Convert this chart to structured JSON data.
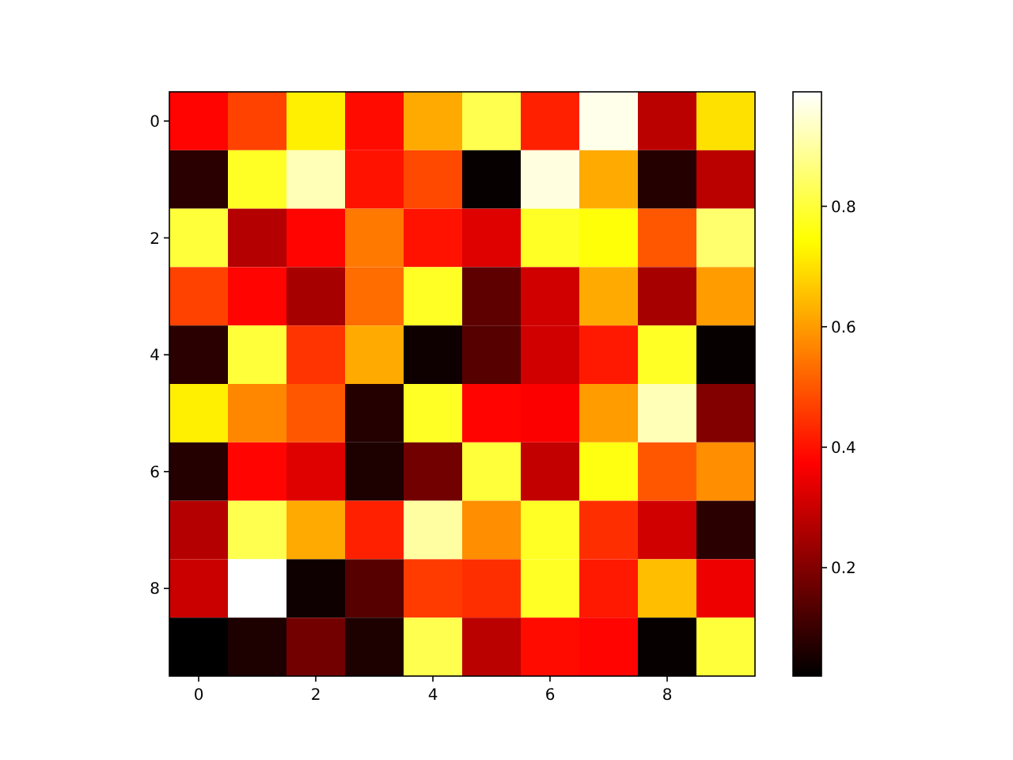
{
  "chart_data": {
    "type": "heatmap",
    "categories": [
      "0",
      null,
      "2",
      null,
      "4",
      null,
      "6",
      null,
      "8",
      null
    ],
    "y_categories": [
      "0",
      null,
      "2",
      null,
      "4",
      null,
      "6",
      null,
      "8",
      null
    ],
    "cells": [
      [
        0.38,
        0.47,
        0.72,
        0.39,
        0.62,
        0.82,
        0.42,
        0.97,
        0.28,
        0.7
      ],
      [
        0.08,
        0.78,
        0.92,
        0.4,
        0.48,
        0.03,
        0.96,
        0.62,
        0.07,
        0.28
      ],
      [
        0.8,
        0.27,
        0.38,
        0.55,
        0.4,
        0.33,
        0.78,
        0.75,
        0.5,
        0.85
      ],
      [
        0.47,
        0.38,
        0.25,
        0.53,
        0.78,
        0.15,
        0.31,
        0.62,
        0.25,
        0.6
      ],
      [
        0.08,
        0.8,
        0.45,
        0.62,
        0.04,
        0.14,
        0.31,
        0.41,
        0.78,
        0.03
      ],
      [
        0.72,
        0.57,
        0.5,
        0.07,
        0.78,
        0.38,
        0.37,
        0.6,
        0.92,
        0.2
      ],
      [
        0.07,
        0.38,
        0.33,
        0.06,
        0.18,
        0.8,
        0.29,
        0.76,
        0.5,
        0.58
      ],
      [
        0.27,
        0.82,
        0.62,
        0.42,
        0.9,
        0.58,
        0.78,
        0.44,
        0.31,
        0.08
      ],
      [
        0.3,
        0.99,
        0.04,
        0.14,
        0.46,
        0.44,
        0.78,
        0.41,
        0.65,
        0.35
      ],
      [
        0.02,
        0.06,
        0.18,
        0.06,
        0.82,
        0.28,
        0.39,
        0.38,
        0.03,
        0.8
      ]
    ],
    "clim": [
      0.02,
      0.99
    ],
    "cticks": [
      0.2,
      0.4,
      0.6,
      0.8
    ]
  }
}
